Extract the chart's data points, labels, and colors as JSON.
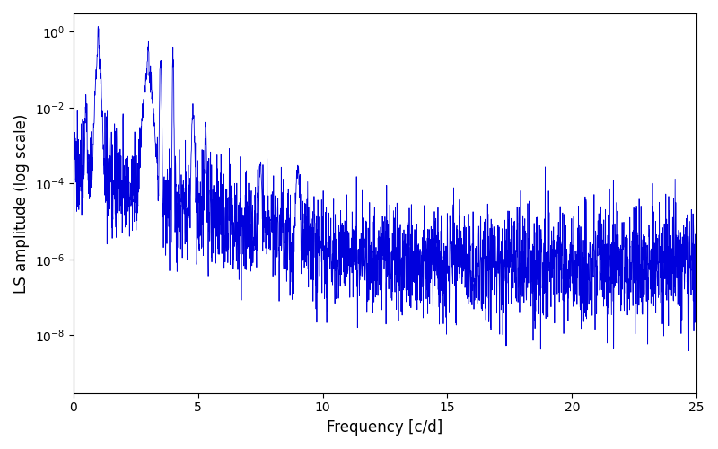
{
  "line_color": "#0000dd",
  "line_width": 0.6,
  "xlabel": "Frequency [c/d]",
  "ylabel": "LS amplitude (log scale)",
  "xlim": [
    0,
    25
  ],
  "ylim_log": [
    3e-10,
    3.0
  ],
  "ytick_vals": [
    1e-08,
    1e-06,
    0.0001,
    0.01,
    1.0
  ],
  "xticks": [
    0,
    5,
    10,
    15,
    20,
    25
  ],
  "background_color": "#ffffff",
  "figsize": [
    8.0,
    5.0
  ],
  "dpi": 100,
  "seed": 137,
  "n_points": 3000,
  "freq_max": 25.0
}
